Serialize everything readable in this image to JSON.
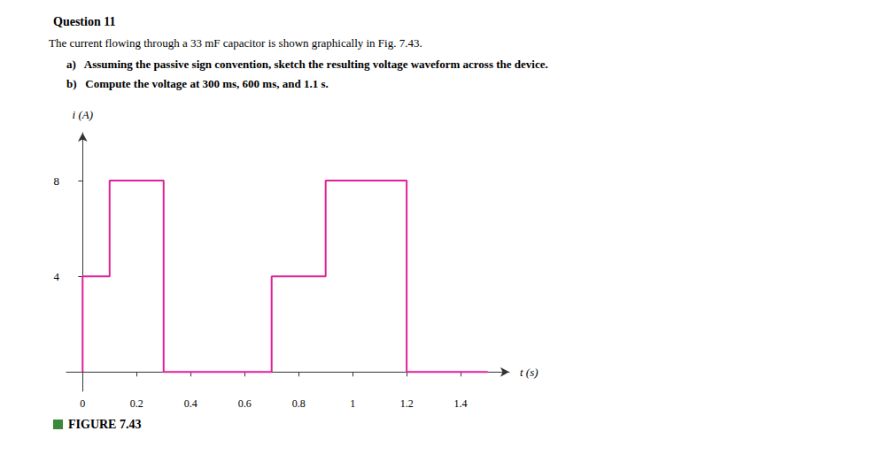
{
  "chart_data": {
    "type": "line",
    "title": "Question 11",
    "subtitle": [
      "The current flowing through a 33 mF capacitor is shown graphically in Fig. 7.43.",
      "a)   Assuming the passive sign convention, sketch the resulting voltage waveform across the device.",
      "b)   Compute the voltage at 300 ms, 600 ms, and 1.1 s."
    ],
    "annotations": [
      "FIGURE 7.43"
    ],
    "xlabel": "t (s)",
    "ylabel": "i (A)",
    "x": [
      0,
      0,
      0.1,
      0.1,
      0.3,
      0.3,
      0.7,
      0.7,
      0.9,
      0.9,
      1.2,
      1.2,
      1.5
    ],
    "values": [
      0,
      4,
      4,
      8,
      8,
      0,
      0,
      4,
      4,
      8,
      8,
      0,
      0
    ],
    "color": "#e0209a",
    "xlim": [
      -0.06,
      1.58
    ],
    "ylim": [
      -0.8,
      10.0
    ],
    "xticks": [
      0,
      0.2,
      0.4,
      0.6,
      0.8,
      1,
      1.2,
      1.4
    ],
    "yticks": [
      4,
      8
    ],
    "grid": false
  }
}
